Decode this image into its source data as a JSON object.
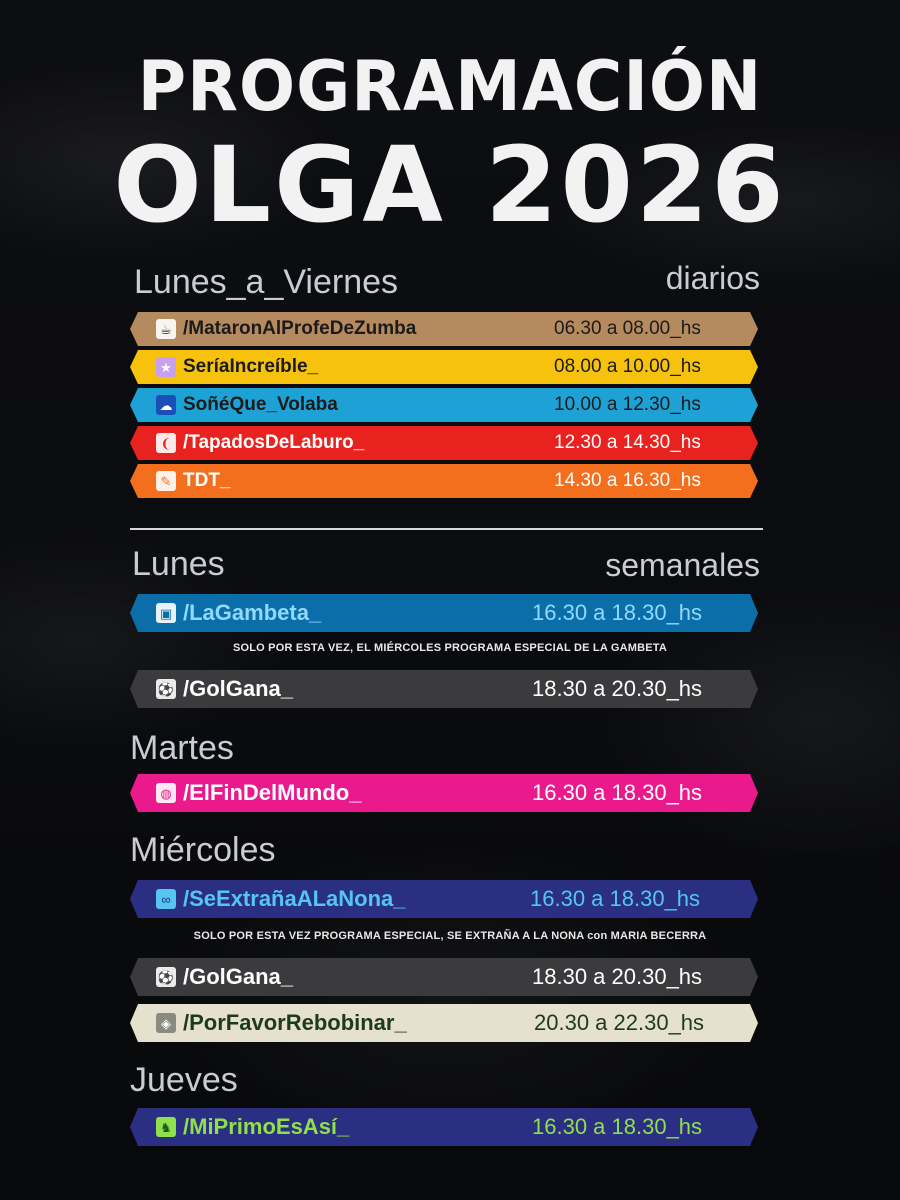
{
  "header": {
    "title_line1": "PROGRAMACIÓN",
    "title_line2": "OLGA 2026"
  },
  "daily": {
    "heading": "Lunes_a_Viernes",
    "tag": "diarios",
    "shows": [
      {
        "name": "/MataronAlProfeDeZumba",
        "time": "06.30 a 08.00_hs",
        "icon": "coffee-icon",
        "bg": "#b58a5e",
        "fg": "#1b1b1b"
      },
      {
        "name": "SeríaIncreíble_",
        "time": "08.00 a 10.00_hs",
        "icon": "star-icon",
        "bg": "#f6c20d",
        "fg": "#1b1b1b"
      },
      {
        "name": "SoñéQue_Volaba",
        "time": "10.00 a 12.30_hs",
        "icon": "cloud-icon",
        "bg": "#1ea2d6",
        "fg": "#1b1b1b"
      },
      {
        "name": "/TapadosDeLaburo_",
        "time": "12.30 a 14.30_hs",
        "icon": "chili-icon",
        "bg": "#e8231f",
        "fg": "#ffffff"
      },
      {
        "name": "TDT_",
        "time": "14.30 a 16.30_hs",
        "icon": "pen-icon",
        "bg": "#f36f1e",
        "fg": "#ffffff"
      }
    ]
  },
  "weekly": {
    "tag": "semanales",
    "monday": {
      "heading": "Lunes",
      "shows": [
        {
          "name": "/LaGambeta_",
          "time": "16.30 a 18.30_hs",
          "icon": "mug-icon",
          "bg": "#0c6ea8",
          "fg": "#8fd8ff"
        },
        {
          "name": "/GolGana_",
          "time": "18.30 a 20.30_hs",
          "icon": "soccer-ball-icon",
          "bg": "#3b3b3d",
          "fg": "#ffffff"
        }
      ],
      "note": "SOLO POR ESTA VEZ, EL MIÉRCOLES PROGRAMA ESPECIAL DE LA GAMBETA"
    },
    "tuesday": {
      "heading": "Martes",
      "shows": [
        {
          "name": "/ElFinDelMundo_",
          "time": "16.30 a 18.30_hs",
          "icon": "globe-icon",
          "bg": "#ea1a8c",
          "fg": "#ffffff"
        }
      ]
    },
    "wednesday": {
      "heading": "Miércoles",
      "shows": [
        {
          "name": "/SeExtrañaALaNona_",
          "time": "16.30 a 18.30_hs",
          "icon": "glasses-icon",
          "bg": "#2b2f83",
          "fg": "#54c6f0"
        },
        {
          "name": "/GolGana_",
          "time": "18.30 a 20.30_hs",
          "icon": "soccer-ball-icon",
          "bg": "#3b3b3d",
          "fg": "#ffffff"
        },
        {
          "name": "/PorFavorRebobinar_",
          "time": "20.30 a 22.30_hs",
          "icon": "ticket-icon",
          "bg": "#e6e1cf",
          "fg": "#1d3a1f"
        }
      ],
      "note": "SOLO POR ESTA VEZ PROGRAMA ESPECIAL, SE EXTRAÑA A LA NONA con MARIA BECERRA"
    },
    "thursday": {
      "heading": "Jueves",
      "shows": [
        {
          "name": "/MiPrimoEsAsí_",
          "time": "16.30 a 18.30_hs",
          "icon": "llama-icon",
          "bg": "#2b2f83",
          "fg": "#8fe04a"
        }
      ]
    }
  }
}
